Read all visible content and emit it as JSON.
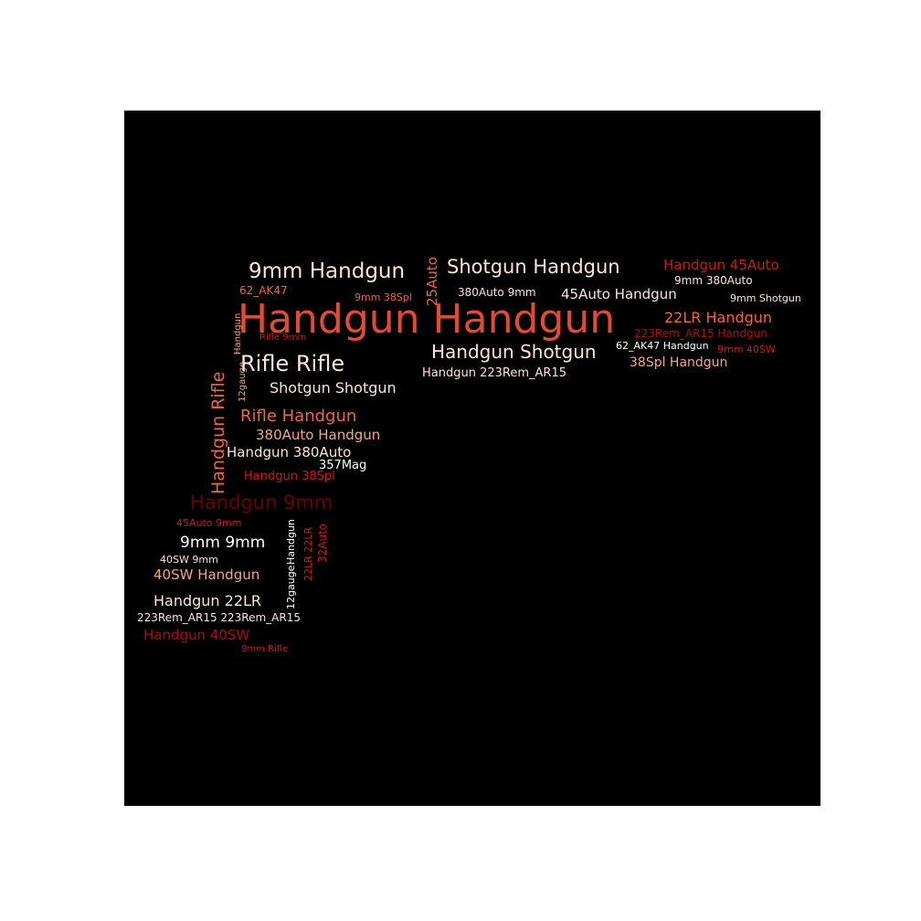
{
  "palette": {
    "background": "#000000",
    "white": "#ffffff",
    "pale": "#fde3d8",
    "salmon": "#f4a582",
    "coral": "#ef6548",
    "red": "#e34a33",
    "crimson": "#cb181d",
    "darkred": "#a50f15",
    "maroon": "#67000d"
  },
  "words": [
    {
      "text": "Handgun Handgun",
      "color": "red"
    },
    {
      "text": "9mm Handgun",
      "color": "pale"
    },
    {
      "text": "Shotgun Handgun",
      "color": "pale"
    },
    {
      "text": "Handgun 45Auto",
      "color": "crimson"
    },
    {
      "text": "25Auto",
      "color": "coral"
    },
    {
      "text": "62_AK47",
      "color": "coral"
    },
    {
      "text": "9mm 38Spl",
      "color": "coral"
    },
    {
      "text": "380Auto 9mm",
      "color": "pale"
    },
    {
      "text": "9mm 380Auto",
      "color": "pale"
    },
    {
      "text": "45Auto Handgun",
      "color": "pale"
    },
    {
      "text": "9mm Shotgun",
      "color": "pale"
    },
    {
      "text": "22LR Handgun",
      "color": "coral"
    },
    {
      "text": "223Rem_AR15 Handgun",
      "color": "darkred"
    },
    {
      "text": "Rifle 9mm",
      "color": "crimson"
    },
    {
      "text": "Handgun Rifle",
      "color": "coral"
    },
    {
      "text": "Handgun",
      "color": "salmon"
    },
    {
      "text": "12gauge",
      "color": "salmon"
    },
    {
      "text": "Handgun Shotgun",
      "color": "pale"
    },
    {
      "text": "62_AK47 Handgun",
      "color": "white"
    },
    {
      "text": "9mm 40SW",
      "color": "crimson"
    },
    {
      "text": "Rifle Rifle",
      "color": "pale"
    },
    {
      "text": "38Spl Handgun",
      "color": "salmon"
    },
    {
      "text": "Handgun 223Rem_AR15",
      "color": "pale"
    },
    {
      "text": "Shotgun Shotgun",
      "color": "pale"
    },
    {
      "text": "Rifle Handgun",
      "color": "coral"
    },
    {
      "text": "380Auto Handgun",
      "color": "salmon"
    },
    {
      "text": "Handgun 380Auto",
      "color": "pale"
    },
    {
      "text": "357Mag",
      "color": "white"
    },
    {
      "text": "Handgun 38Spl",
      "color": "crimson"
    },
    {
      "text": "Handgun 9mm",
      "color": "maroon"
    },
    {
      "text": "12gauge",
      "color": "white"
    },
    {
      "text": "22LR 22LR",
      "color": "crimson"
    },
    {
      "text": "32Auto",
      "color": "crimson"
    },
    {
      "text": "Handgun",
      "color": "white"
    },
    {
      "text": "45Auto 9mm",
      "color": "crimson"
    },
    {
      "text": "9mm 9mm",
      "color": "white"
    },
    {
      "text": "40SW 9mm",
      "color": "pale"
    },
    {
      "text": "40SW Handgun",
      "color": "salmon"
    },
    {
      "text": "Handgun 22LR",
      "color": "pale"
    },
    {
      "text": "223Rem_AR15 223Rem_AR15",
      "color": "pale"
    },
    {
      "text": "Handgun 40SW",
      "color": "darkred"
    },
    {
      "text": "9mm Rifle",
      "color": "crimson"
    }
  ]
}
